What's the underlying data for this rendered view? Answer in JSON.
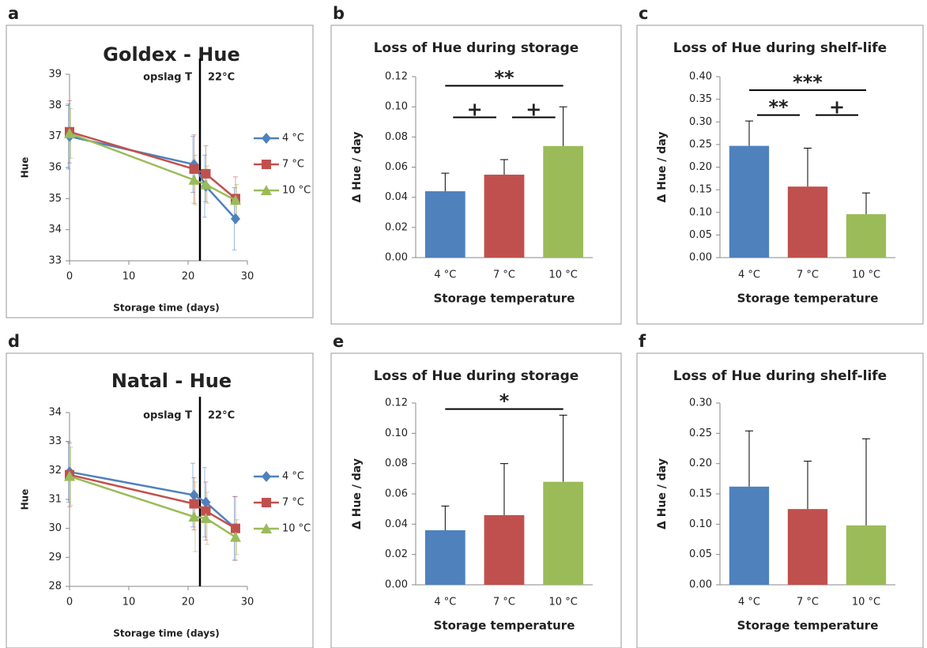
{
  "chart_data": [
    {
      "type": "line",
      "panel_label": "a",
      "title": "Goldex - Hue",
      "xlabel": "Storage time (days)",
      "ylabel": "Hue",
      "x": [
        0,
        21,
        23,
        28
      ],
      "xlim": [
        0,
        30
      ],
      "xticks": [
        0,
        10,
        20,
        30
      ],
      "ylim": [
        33,
        39
      ],
      "yticks": [
        33,
        34,
        35,
        36,
        37,
        38,
        39
      ],
      "vline": 22,
      "annotations": [
        "opslag T",
        "22°C"
      ],
      "series": [
        {
          "name": "4 °C",
          "color": "#4f81bd",
          "marker": "diamond",
          "values": [
            37.0,
            36.1,
            35.4,
            34.35
          ],
          "errors": [
            1.05,
            0.9,
            1.0,
            1.0
          ]
        },
        {
          "name": "7 °C",
          "color": "#c0504d",
          "marker": "square",
          "values": [
            37.15,
            35.95,
            35.8,
            35.0
          ],
          "errors": [
            1.0,
            1.1,
            0.9,
            0.7
          ]
        },
        {
          "name": "10 °C",
          "color": "#9bbb59",
          "marker": "triangle",
          "values": [
            37.1,
            35.6,
            35.45,
            34.95
          ],
          "errors": [
            0.8,
            0.8,
            0.6,
            0.5
          ]
        }
      ]
    },
    {
      "type": "bar",
      "panel_label": "b",
      "title": "Loss of Hue during storage",
      "xlabel": "Storage temperature",
      "ylabel": "Δ Hue / day",
      "categories": [
        "4 °C",
        "7 °C",
        "10 °C"
      ],
      "values": [
        0.044,
        0.055,
        0.074
      ],
      "errors": [
        0.012,
        0.01,
        0.026
      ],
      "colors": [
        "#4f81bd",
        "#c0504d",
        "#9bbb59"
      ],
      "ylim": [
        0,
        0.12
      ],
      "yticks": [
        {
          "value": 0,
          "label": "0.00"
        },
        {
          "value": 0.02,
          "label": "0.02"
        },
        {
          "value": 0.04,
          "label": "0.04"
        },
        {
          "value": 0.06,
          "label": "0.06"
        },
        {
          "value": 0.08,
          "label": "0.08"
        },
        {
          "value": 0.1,
          "label": "0.10"
        },
        {
          "value": 0.12,
          "label": "0.12"
        }
      ],
      "significance": [
        {
          "label": "**",
          "from": "4 °C",
          "to": "10 °C",
          "y": 0.114
        },
        {
          "label": "+",
          "from": "4 °C",
          "to": "7 °C",
          "y": 0.093
        },
        {
          "label": "+",
          "from": "7 °C",
          "to": "10 °C",
          "y": 0.093
        }
      ]
    },
    {
      "type": "bar",
      "panel_label": "c",
      "title": "Loss of Hue during shelf-life",
      "xlabel": "Storage temperature",
      "ylabel": "Δ Hue / day",
      "categories": [
        "4 °C",
        "7 °C",
        "10 °C"
      ],
      "values": [
        0.247,
        0.157,
        0.096
      ],
      "errors": [
        0.055,
        0.085,
        0.047
      ],
      "colors": [
        "#4f81bd",
        "#c0504d",
        "#9bbb59"
      ],
      "ylim": [
        0,
        0.4
      ],
      "yticks": [
        {
          "value": 0,
          "label": "0.00"
        },
        {
          "value": 0.05,
          "label": "0.05"
        },
        {
          "value": 0.1,
          "label": "0.10"
        },
        {
          "value": 0.15,
          "label": "0.15"
        },
        {
          "value": 0.2,
          "label": "0.20"
        },
        {
          "value": 0.25,
          "label": "0.25"
        },
        {
          "value": 0.3,
          "label": "0.30"
        },
        {
          "value": 0.35,
          "label": "0.35"
        },
        {
          "value": 0.4,
          "label": "0.40"
        }
      ],
      "significance": [
        {
          "label": "***",
          "from": "4 °C",
          "to": "10 °C",
          "y": 0.37
        },
        {
          "label": "**",
          "from": "4 °C",
          "to": "7 °C",
          "y": 0.315
        },
        {
          "label": "+",
          "from": "7 °C",
          "to": "10 °C",
          "y": 0.315
        }
      ]
    },
    {
      "type": "line",
      "panel_label": "d",
      "title": "Natal - Hue",
      "xlabel": "Storage time (days)",
      "ylabel": "Hue",
      "x": [
        0,
        21,
        23,
        28
      ],
      "xlim": [
        0,
        30
      ],
      "xticks": [
        0,
        10,
        20,
        30
      ],
      "ylim": [
        28,
        34
      ],
      "yticks": [
        28,
        29,
        30,
        31,
        32,
        33,
        34
      ],
      "vline": 22,
      "annotations": [
        "opslag T",
        "22°C"
      ],
      "series": [
        {
          "name": "4 °C",
          "color": "#4f81bd",
          "marker": "diamond",
          "values": [
            31.95,
            31.15,
            30.9,
            30.0
          ],
          "errors": [
            1.05,
            1.1,
            1.2,
            1.1
          ]
        },
        {
          "name": "7 °C",
          "color": "#c0504d",
          "marker": "square",
          "values": [
            31.85,
            30.85,
            30.6,
            30.0
          ],
          "errors": [
            1.1,
            0.9,
            1.0,
            1.1
          ]
        },
        {
          "name": "10 °C",
          "color": "#9bbb59",
          "marker": "triangle",
          "values": [
            31.8,
            30.4,
            30.35,
            29.7
          ],
          "errors": [
            1.0,
            1.2,
            0.9,
            0.6
          ]
        }
      ]
    },
    {
      "type": "bar",
      "panel_label": "e",
      "title": "Loss of Hue during storage",
      "xlabel": "Storage temperature",
      "ylabel": "Δ Hue / day",
      "categories": [
        "4 °C",
        "7 °C",
        "10 °C"
      ],
      "values": [
        0.036,
        0.046,
        0.068
      ],
      "errors": [
        0.016,
        0.034,
        0.044
      ],
      "colors": [
        "#4f81bd",
        "#c0504d",
        "#9bbb59"
      ],
      "ylim": [
        0,
        0.12
      ],
      "yticks": [
        {
          "value": 0,
          "label": "0.00"
        },
        {
          "value": 0.02,
          "label": "0.02"
        },
        {
          "value": 0.04,
          "label": "0.04"
        },
        {
          "value": 0.06,
          "label": "0.06"
        },
        {
          "value": 0.08,
          "label": "0.08"
        },
        {
          "value": 0.1,
          "label": "0.10"
        },
        {
          "value": 0.12,
          "label": "0.12"
        }
      ],
      "significance": [
        {
          "label": "*",
          "from": "4 °C",
          "to": "10 °C",
          "y": 0.116
        }
      ]
    },
    {
      "type": "bar",
      "panel_label": "f",
      "title": "Loss of Hue during shelf-life",
      "xlabel": "Storage temperature",
      "ylabel": "Δ Hue / day",
      "categories": [
        "4 °C",
        "7 °C",
        "10 °C"
      ],
      "values": [
        0.162,
        0.125,
        0.098
      ],
      "errors": [
        0.092,
        0.079,
        0.143
      ],
      "colors": [
        "#4f81bd",
        "#c0504d",
        "#9bbb59"
      ],
      "ylim": [
        0,
        0.3
      ],
      "yticks": [
        {
          "value": 0,
          "label": "0.00"
        },
        {
          "value": 0.05,
          "label": "0.05"
        },
        {
          "value": 0.1,
          "label": "0.10"
        },
        {
          "value": 0.15,
          "label": "0.15"
        },
        {
          "value": 0.2,
          "label": "0.20"
        },
        {
          "value": 0.25,
          "label": "0.25"
        },
        {
          "value": 0.3,
          "label": "0.30"
        }
      ],
      "significance": []
    }
  ]
}
